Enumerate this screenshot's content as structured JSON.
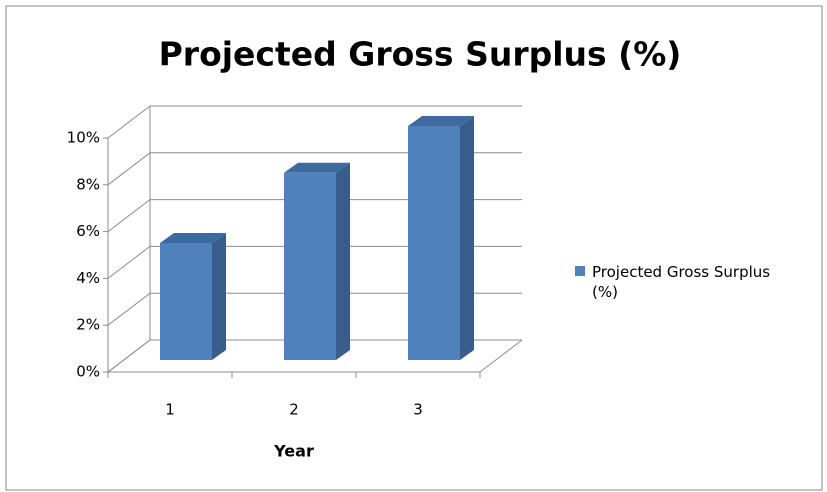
{
  "chart_data": {
    "type": "bar",
    "title": "Projected Gross Surplus (%)",
    "x_label": "Year",
    "categories": [
      "1",
      "2",
      "3"
    ],
    "series": [
      {
        "name": "Projected Gross Surplus (%)",
        "color": "#4f81bd",
        "values": [
          5,
          8,
          10
        ]
      }
    ],
    "ylim": [
      0,
      10
    ],
    "yticks": [
      {
        "value": 0,
        "label": "0%"
      },
      {
        "value": 2,
        "label": "2%"
      },
      {
        "value": 4,
        "label": "4%"
      },
      {
        "value": 6,
        "label": "6%"
      },
      {
        "value": 8,
        "label": "8%"
      },
      {
        "value": 10,
        "label": "10%"
      }
    ],
    "grid": true,
    "legend": "right"
  }
}
